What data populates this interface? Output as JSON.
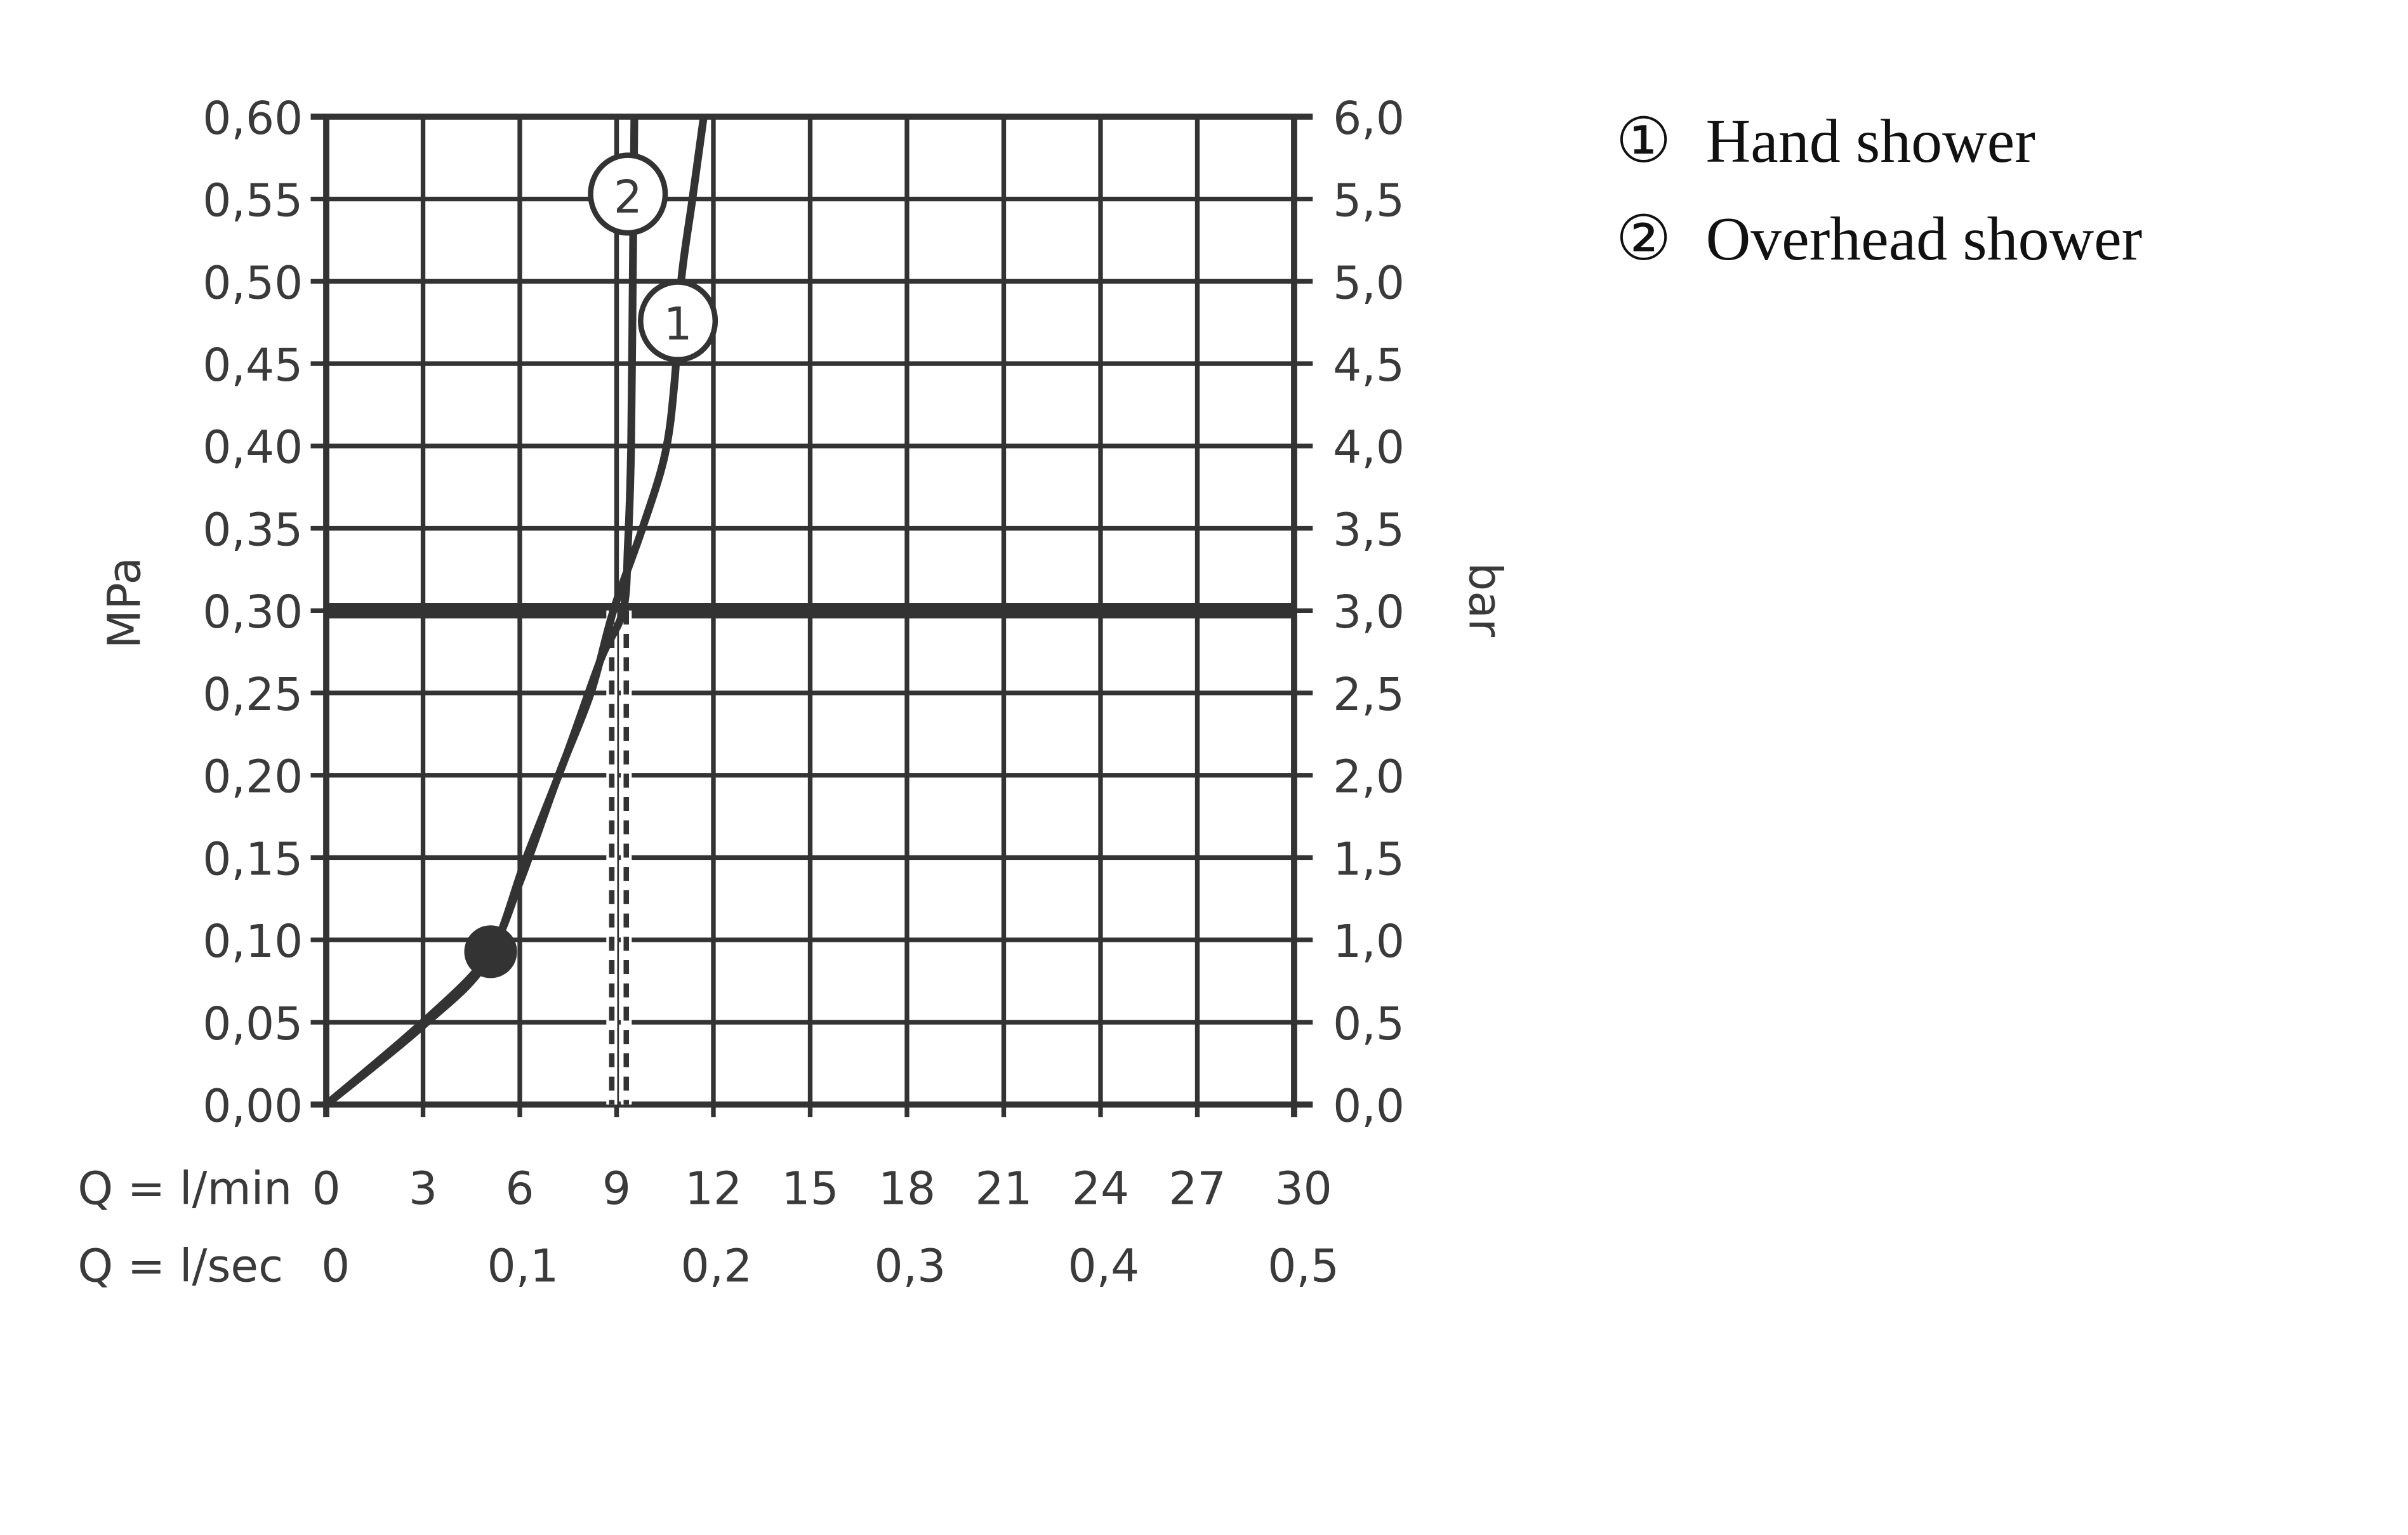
{
  "chart_data": {
    "type": "line",
    "xlabel_rows": [
      "Q = l/min",
      "Q = l/sec"
    ],
    "ylabel_left": "MPa",
    "ylabel_right": "bar",
    "xlim": [
      0,
      30
    ],
    "ylim": [
      0,
      0.6
    ],
    "grid": true,
    "legend_position": "top-right",
    "x_ticks_lmin": [
      "0",
      "3",
      "6",
      "9",
      "12",
      "15",
      "18",
      "21",
      "24",
      "27",
      "30"
    ],
    "x_ticks_lsec": [
      {
        "at_lmin": 0,
        "label": "0"
      },
      {
        "at_lmin": 6,
        "label": "0,1"
      },
      {
        "at_lmin": 12,
        "label": "0,2"
      },
      {
        "at_lmin": 18,
        "label": "0,3"
      },
      {
        "at_lmin": 24,
        "label": "0,4"
      },
      {
        "at_lmin": 30,
        "label": "0,5"
      }
    ],
    "y_ticks_left": [
      "0,00",
      "0,05",
      "0,10",
      "0,15",
      "0,20",
      "0,25",
      "0,30",
      "0,35",
      "0,40",
      "0,45",
      "0,50",
      "0,55",
      "0,60"
    ],
    "y_ticks_right": [
      "0,0",
      "0,5",
      "1,0",
      "1,5",
      "2,0",
      "2,5",
      "3,0",
      "3,5",
      "4,0",
      "4,5",
      "5,0",
      "5,5",
      "6,0"
    ],
    "reference_line_mpa": 0.3,
    "reference_flows_lmin": [
      8.85,
      9.3
    ],
    "marker_point": {
      "x": 5,
      "y": 0.09
    },
    "series": [
      {
        "name": "Hand shower",
        "marker_label": "1",
        "label_at": {
          "x": 10.9,
          "y": 0.476
        },
        "points": [
          [
            0,
            0
          ],
          [
            3,
            0.05
          ],
          [
            5,
            0.09
          ],
          [
            6,
            0.135
          ],
          [
            7.2,
            0.2
          ],
          [
            8.2,
            0.25
          ],
          [
            8.9,
            0.3
          ],
          [
            9.8,
            0.35
          ],
          [
            10.5,
            0.395
          ],
          [
            10.8,
            0.44
          ],
          [
            11.0,
            0.5
          ],
          [
            11.35,
            0.55
          ],
          [
            11.7,
            0.6
          ]
        ]
      },
      {
        "name": "Overhead shower",
        "marker_label": "2",
        "label_at": {
          "x": 9.35,
          "y": 0.553
        },
        "points": [
          [
            0,
            0
          ],
          [
            3,
            0.048
          ],
          [
            5,
            0.088
          ],
          [
            6.2,
            0.15
          ],
          [
            7.4,
            0.21
          ],
          [
            8.5,
            0.27
          ],
          [
            9.2,
            0.3
          ],
          [
            9.35,
            0.34
          ],
          [
            9.45,
            0.4
          ],
          [
            9.5,
            0.5
          ],
          [
            9.55,
            0.6
          ]
        ]
      }
    ],
    "line_color": "#333333"
  },
  "legend": {
    "items": [
      {
        "symbol": "①",
        "label": "Hand shower"
      },
      {
        "symbol": "②",
        "label": "Overhead shower"
      }
    ]
  }
}
